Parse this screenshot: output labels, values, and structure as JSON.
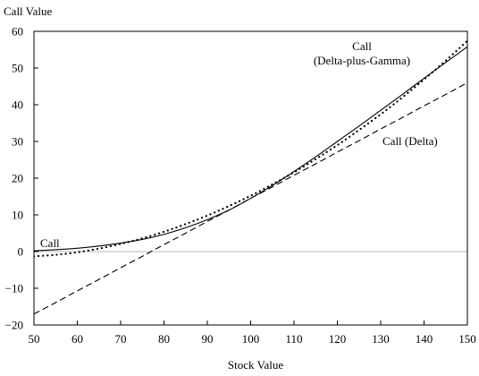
{
  "chart_data": {
    "type": "line",
    "title": "",
    "ylabel": "Call Value",
    "xlabel": "Stock Value",
    "xlim": [
      50,
      150
    ],
    "ylim": [
      -20,
      60
    ],
    "x_ticks": [
      50,
      60,
      70,
      80,
      90,
      100,
      110,
      120,
      130,
      140,
      150
    ],
    "y_ticks": [
      -20,
      -10,
      0,
      10,
      20,
      30,
      40,
      50,
      60
    ],
    "grid": false,
    "zero_line": true,
    "x": [
      50,
      55,
      60,
      65,
      70,
      75,
      80,
      85,
      90,
      95,
      100,
      105,
      110,
      115,
      120,
      125,
      130,
      135,
      140,
      145,
      150
    ],
    "series": [
      {
        "name": "Call",
        "style": "solid",
        "color": "#000000",
        "values": [
          0.2,
          0.5,
          0.9,
          1.5,
          2.3,
          3.3,
          4.7,
          6.5,
          8.7,
          11.3,
          14.5,
          18.0,
          21.8,
          25.8,
          30.0,
          34.2,
          38.5,
          42.8,
          47.2,
          51.5,
          55.8
        ]
      },
      {
        "name": "Call (Delta-plus-Gamma)",
        "style": "dotted",
        "color": "#000000",
        "values": [
          -1.3,
          -0.9,
          -0.2,
          0.8,
          2.1,
          3.6,
          5.4,
          7.5,
          9.8,
          12.4,
          15.2,
          18.3,
          21.6,
          25.2,
          29.0,
          33.1,
          37.4,
          42.0,
          46.9,
          52.0,
          57.4
        ]
      },
      {
        "name": "Call (Delta)",
        "style": "dashed",
        "color": "#000000",
        "values": [
          -17.0,
          -13.9,
          -10.7,
          -7.6,
          -4.4,
          -1.3,
          1.9,
          5.0,
          8.2,
          11.3,
          14.5,
          17.6,
          20.8,
          23.9,
          27.1,
          30.2,
          33.4,
          36.5,
          39.7,
          42.8,
          46.0
        ]
      }
    ],
    "annotations": {
      "call": "Call",
      "delta_gamma_line1": "Call",
      "delta_gamma_line2": "(Delta-plus-Gamma)",
      "delta": "Call (Delta)"
    }
  }
}
